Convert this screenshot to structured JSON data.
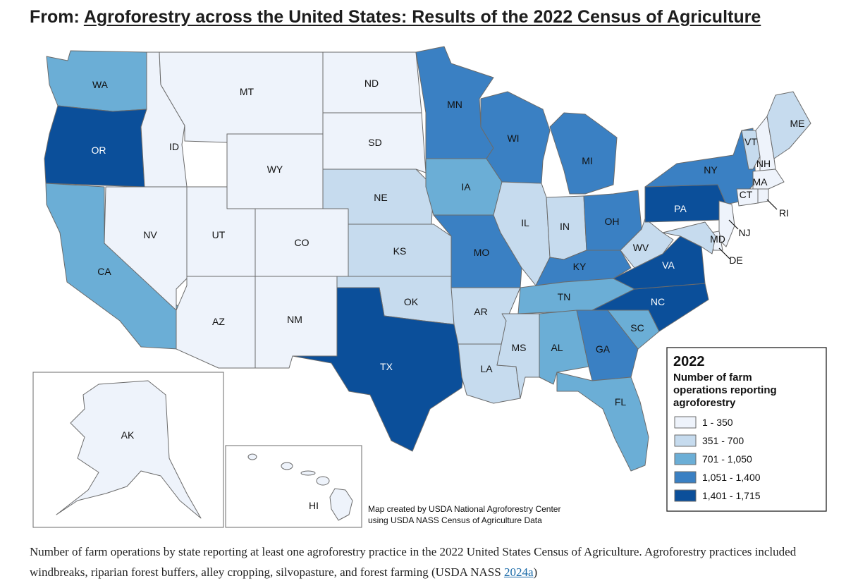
{
  "header": {
    "prefix": "From: ",
    "article_title": "Agroforestry across the United States: Results of the 2022 Census of Agriculture"
  },
  "map": {
    "colors": {
      "c1": "#eef3fb",
      "c2": "#c6dbee",
      "c3": "#6baed6",
      "c4": "#3a80c3",
      "c5": "#0b4f9a"
    },
    "states": [
      {
        "abbr": "WA",
        "cls": "c3"
      },
      {
        "abbr": "OR",
        "cls": "c5"
      },
      {
        "abbr": "CA",
        "cls": "c3"
      },
      {
        "abbr": "ID",
        "cls": "c1"
      },
      {
        "abbr": "NV",
        "cls": "c1"
      },
      {
        "abbr": "MT",
        "cls": "c1"
      },
      {
        "abbr": "WY",
        "cls": "c1"
      },
      {
        "abbr": "UT",
        "cls": "c1"
      },
      {
        "abbr": "CO",
        "cls": "c1"
      },
      {
        "abbr": "AZ",
        "cls": "c1"
      },
      {
        "abbr": "NM",
        "cls": "c1"
      },
      {
        "abbr": "ND",
        "cls": "c1"
      },
      {
        "abbr": "SD",
        "cls": "c1"
      },
      {
        "abbr": "NE",
        "cls": "c2"
      },
      {
        "abbr": "KS",
        "cls": "c2"
      },
      {
        "abbr": "OK",
        "cls": "c2"
      },
      {
        "abbr": "TX",
        "cls": "c5"
      },
      {
        "abbr": "MN",
        "cls": "c4"
      },
      {
        "abbr": "IA",
        "cls": "c3"
      },
      {
        "abbr": "MO",
        "cls": "c4"
      },
      {
        "abbr": "AR",
        "cls": "c2"
      },
      {
        "abbr": "LA",
        "cls": "c2"
      },
      {
        "abbr": "WI",
        "cls": "c4"
      },
      {
        "abbr": "IL",
        "cls": "c2"
      },
      {
        "abbr": "MI",
        "cls": "c4"
      },
      {
        "abbr": "IN",
        "cls": "c2"
      },
      {
        "abbr": "OH",
        "cls": "c4"
      },
      {
        "abbr": "KY",
        "cls": "c4"
      },
      {
        "abbr": "TN",
        "cls": "c3"
      },
      {
        "abbr": "MS",
        "cls": "c2"
      },
      {
        "abbr": "AL",
        "cls": "c3"
      },
      {
        "abbr": "GA",
        "cls": "c4"
      },
      {
        "abbr": "FL",
        "cls": "c3"
      },
      {
        "abbr": "SC",
        "cls": "c3"
      },
      {
        "abbr": "NC",
        "cls": "c5"
      },
      {
        "abbr": "VA",
        "cls": "c5"
      },
      {
        "abbr": "WV",
        "cls": "c2"
      },
      {
        "abbr": "PA",
        "cls": "c5"
      },
      {
        "abbr": "NY",
        "cls": "c4"
      },
      {
        "abbr": "VT",
        "cls": "c2"
      },
      {
        "abbr": "NH",
        "cls": "c1"
      },
      {
        "abbr": "ME",
        "cls": "c2"
      },
      {
        "abbr": "MA",
        "cls": "c1"
      },
      {
        "abbr": "CT",
        "cls": "c1"
      },
      {
        "abbr": "RI",
        "cls": "c1"
      },
      {
        "abbr": "NJ",
        "cls": "c1"
      },
      {
        "abbr": "DE",
        "cls": "c1"
      },
      {
        "abbr": "MD",
        "cls": "c2"
      },
      {
        "abbr": "AK",
        "cls": "c1"
      },
      {
        "abbr": "HI",
        "cls": "c1"
      }
    ],
    "legend": {
      "year": "2022",
      "subtitle_lines": [
        "Number of farm",
        "operations reporting",
        "agroforestry"
      ],
      "items": [
        {
          "label": "1 - 350",
          "cls": "c1"
        },
        {
          "label": "351 - 700",
          "cls": "c2"
        },
        {
          "label": "701 - 1,050",
          "cls": "c3"
        },
        {
          "label": "1,051 - 1,400",
          "cls": "c4"
        },
        {
          "label": "1,401 - 1,715",
          "cls": "c5"
        }
      ]
    },
    "credit_lines": [
      "Map created by USDA National Agroforestry Center",
      "using USDA NASS Census of Agriculture Data"
    ]
  },
  "caption": {
    "text": "Number of farm operations by state reporting at least one agroforestry practice in the 2022 United States Census of Agriculture. Agroforestry practices included windbreaks, riparian forest buffers, alley cropping, silvopasture, and forest farming (USDA NASS ",
    "link": "2024a",
    "suffix": ")"
  }
}
